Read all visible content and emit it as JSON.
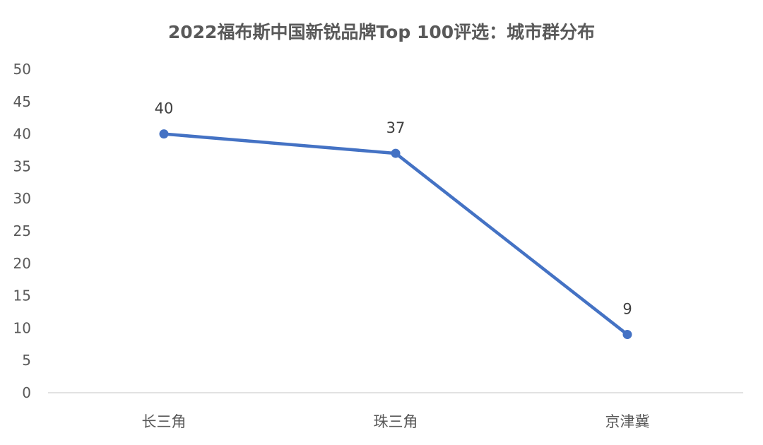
{
  "chart_data": {
    "type": "line",
    "title": "2022福布斯中国新锐品牌Top 100评选：城市群分布",
    "categories": [
      "长三角",
      "珠三角",
      "京津冀"
    ],
    "series": [
      {
        "values": [
          40,
          37,
          9
        ]
      }
    ],
    "data_labels": [
      "40",
      "37",
      "9"
    ],
    "ylim": [
      0,
      50
    ],
    "yticks": [
      0,
      5,
      10,
      15,
      20,
      25,
      30,
      35,
      40,
      45,
      50
    ],
    "grid": false,
    "legend": "none",
    "line_color": "#4472C4",
    "axis_color": "#D9D9D9",
    "text_color": "#595959"
  }
}
